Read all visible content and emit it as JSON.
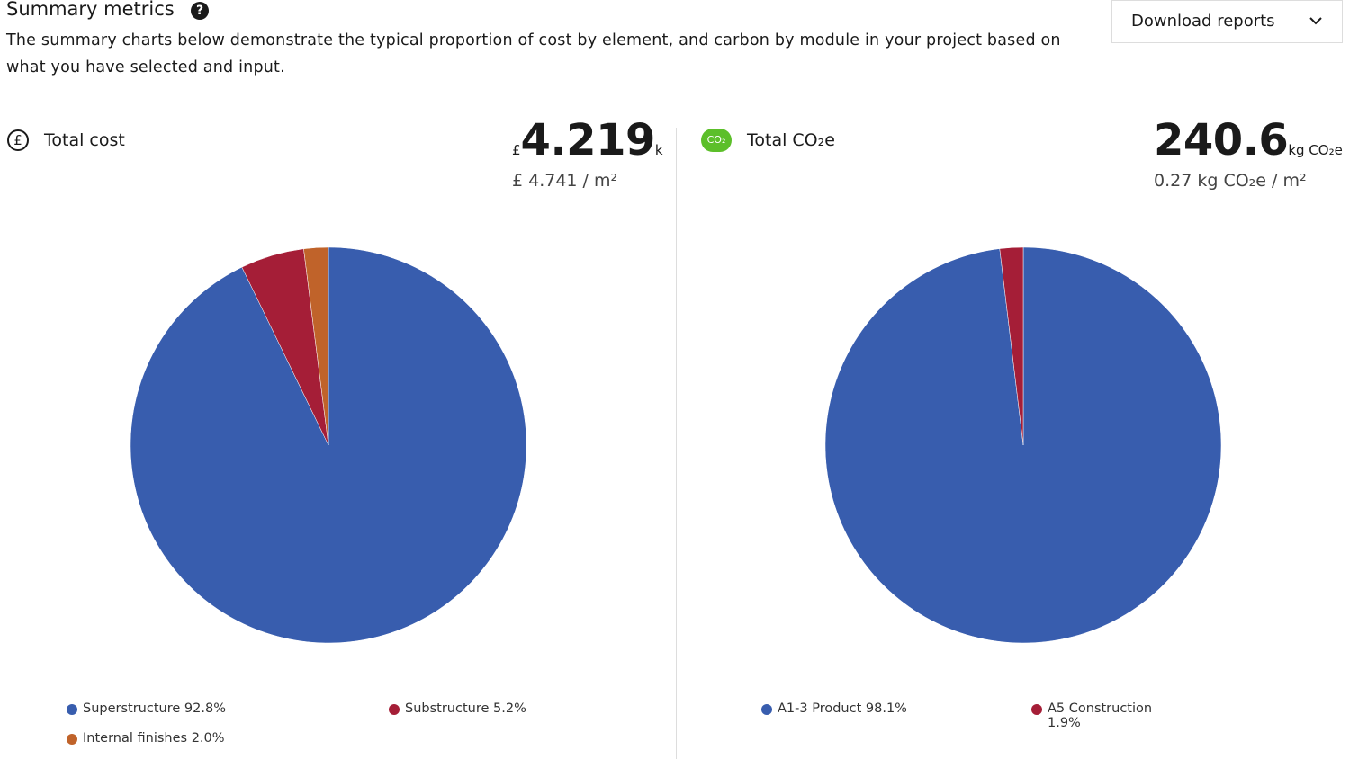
{
  "header": {
    "title": "Summary metrics",
    "help_icon": "?",
    "description": "The summary charts below demonstrate the typical proportion of cost by element, and carbon by module in your project based on what you have selected and input.",
    "download_button": "Download reports"
  },
  "panels": [
    {
      "icon": "£",
      "label": "Total cost",
      "prefix": "£",
      "total": "4.219",
      "unit": "k",
      "per_area": "£ 4.741 / m²"
    },
    {
      "icon": "CO₂",
      "label": "Total CO₂e",
      "total": "240.6",
      "unit": "kg CO₂e",
      "per_area": "0.27 kg CO₂e / m²"
    }
  ],
  "chart_data": [
    {
      "type": "pie",
      "categories": [
        "Superstructure",
        "Substructure",
        "Internal finishes"
      ],
      "values": [
        92.8,
        5.2,
        2.0
      ],
      "value_labels": [
        "92.8%",
        "5.2%",
        "2.0%"
      ],
      "colors": [
        "#385dae",
        "#a51e37",
        "#c0632a"
      ]
    },
    {
      "type": "pie",
      "categories": [
        "A1-3 Product",
        "A5 Construction"
      ],
      "values": [
        98.1,
        1.9
      ],
      "value_labels": [
        "98.1%",
        "1.9%"
      ],
      "colors": [
        "#385dae",
        "#a51e37"
      ]
    }
  ]
}
